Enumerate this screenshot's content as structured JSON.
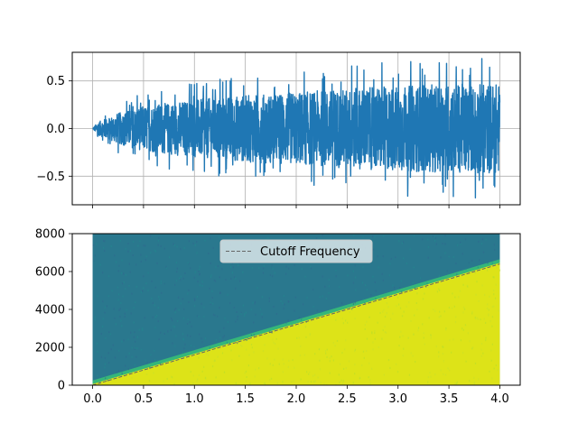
{
  "chart_data": [
    {
      "type": "line",
      "title": "",
      "xlabel": "",
      "ylabel": "",
      "xlim": [
        -0.2,
        4.2
      ],
      "ylim": [
        -0.8,
        0.8
      ],
      "x_ticks": [
        0.0,
        0.5,
        1.0,
        1.5,
        2.0,
        2.5,
        3.0,
        3.5,
        4.0
      ],
      "y_ticks": [
        -0.5,
        0.0,
        0.5
      ],
      "y_tick_labels": [
        "−0.5",
        "0.0",
        "0.5"
      ],
      "grid": true,
      "x_tick_labels_shown": false,
      "series": [
        {
          "color": "#1f77b4",
          "description_envelope": {
            "x": [
              0.0,
              0.05,
              0.25,
              0.5,
              1.0,
              1.5,
              2.0,
              2.5,
              3.0,
              3.5,
              4.0
            ],
            "upper": [
              0.0,
              0.07,
              0.17,
              0.25,
              0.32,
              0.37,
              0.4,
              0.44,
              0.47,
              0.49,
              0.5
            ],
            "lower": [
              0.0,
              -0.07,
              -0.17,
              -0.25,
              -0.32,
              -0.37,
              -0.4,
              -0.44,
              -0.47,
              -0.49,
              -0.5
            ],
            "peak_max": 0.74,
            "peak_min": -0.72
          }
        }
      ]
    },
    {
      "type": "heatmap",
      "title": "",
      "xlabel": "",
      "ylabel": "",
      "xlim": [
        -0.2,
        4.2
      ],
      "ylim": [
        0,
        8000
      ],
      "x_ticks": [
        0.0,
        0.5,
        1.0,
        1.5,
        2.0,
        2.5,
        3.0,
        3.5,
        4.0
      ],
      "x_tick_labels": [
        "0.0",
        "0.5",
        "1.0",
        "1.5",
        "2.0",
        "2.5",
        "3.0",
        "3.5",
        "4.0"
      ],
      "y_ticks": [
        0,
        2000,
        4000,
        6000,
        8000
      ],
      "y_tick_labels": [
        "0",
        "2000",
        "4000",
        "6000",
        "8000"
      ],
      "image_extent": {
        "x": [
          0.0,
          4.0
        ],
        "y": [
          0,
          8000
        ]
      },
      "colormap": {
        "high": "#dde318",
        "low": "#2a788e",
        "edge": "#35b779"
      },
      "grid": false,
      "legend": {
        "placement": "upper-center",
        "entries": [
          {
            "label": "Cutoff Frequency",
            "color": "#666666",
            "style": "dashed"
          }
        ]
      },
      "cutoff_line": {
        "x": [
          0.0,
          4.0
        ],
        "y": [
          0,
          6400
        ]
      }
    }
  ]
}
